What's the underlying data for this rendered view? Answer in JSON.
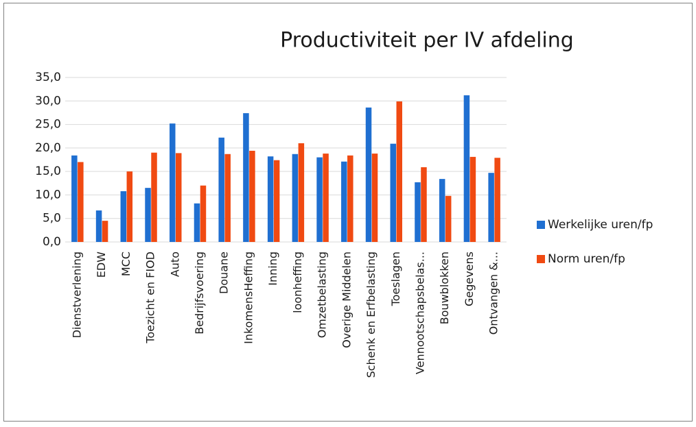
{
  "chart_data": {
    "type": "bar",
    "title": "Productiviteit per IV afdeling",
    "categories": [
      "Dienstverlening",
      "EDW",
      "MCC",
      "Toezicht en FIOD",
      "Auto",
      "Bedrijfsvoering",
      "Douane",
      "InkomensHeffing",
      "Inning",
      "loonheffing",
      "Omzetbelasting",
      "Overige Middelen",
      "Schenk en Erfbelasting",
      "Toeslagen",
      "Vennootschapsbelas...",
      "Bouwblokken",
      "Gegevens",
      "Ontvangen &..."
    ],
    "series": [
      {
        "name": "Werkelijke uren/fp",
        "color": "#1f6fd1",
        "values": [
          18.4,
          6.7,
          10.8,
          11.5,
          25.2,
          8.2,
          22.2,
          27.4,
          18.2,
          18.7,
          18.0,
          17.1,
          28.6,
          20.9,
          12.7,
          13.4,
          31.2,
          14.7
        ]
      },
      {
        "name": "Norm uren/fp",
        "color": "#f04a12",
        "values": [
          17.0,
          4.5,
          15.0,
          19.0,
          18.9,
          12.0,
          18.7,
          19.4,
          17.4,
          21.0,
          18.8,
          18.4,
          18.8,
          29.9,
          15.9,
          9.8,
          18.1,
          17.9
        ]
      }
    ],
    "ylim": [
      0,
      35
    ],
    "yticks": [
      {
        "value": 0,
        "label": "0,0"
      },
      {
        "value": 5,
        "label": "5,0"
      },
      {
        "value": 10,
        "label": "10,0"
      },
      {
        "value": 15,
        "label": "15,0"
      },
      {
        "value": 20,
        "label": "20,0"
      },
      {
        "value": 25,
        "label": "25,0"
      },
      {
        "value": 30,
        "label": "30,0"
      },
      {
        "value": 35,
        "label": "35,0"
      }
    ],
    "grid": true,
    "legend": "right"
  }
}
